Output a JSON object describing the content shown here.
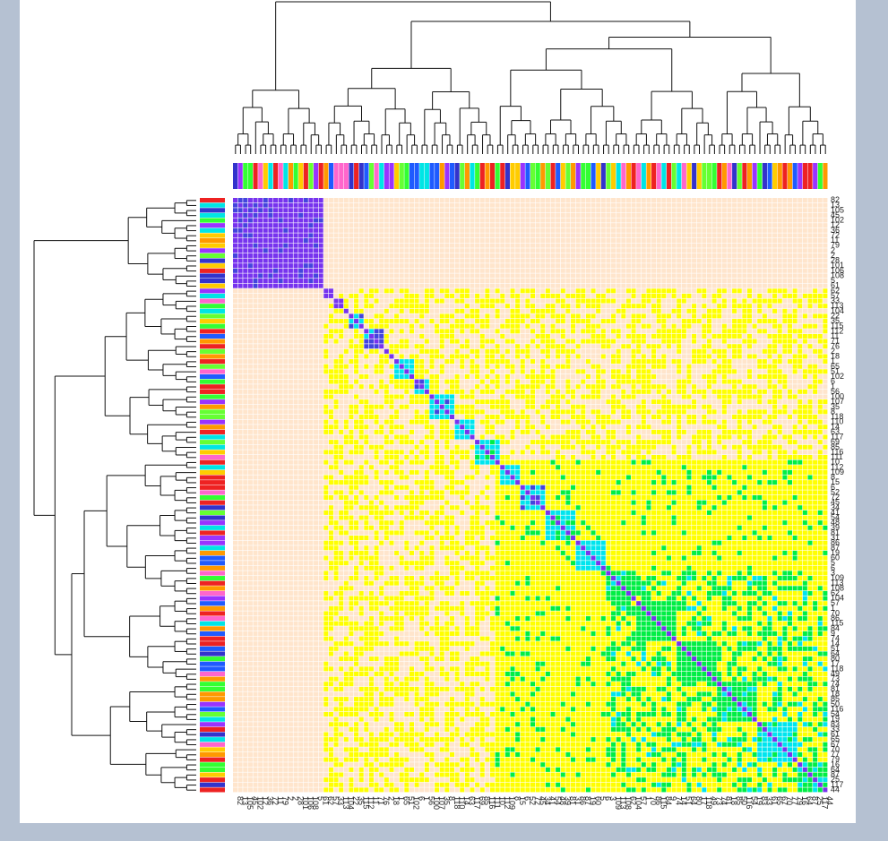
{
  "chart_data": {
    "type": "heatmap",
    "title": "",
    "xlabel": "",
    "ylabel": "",
    "description_of_structure": "Hierarchically clustered correlation heatmap with row and column dendrograms and colored group side-bars",
    "n": 118,
    "row_labels_visible": [
      "82",
      "13",
      "105",
      "45",
      "102",
      "12",
      "36",
      "72",
      "11",
      "79",
      "2",
      "2",
      "28",
      "101",
      "106",
      "108",
      "5",
      "61",
      "62",
      "57",
      "33",
      "113",
      "104",
      "22",
      "35",
      "115",
      "112",
      "11",
      "71",
      "76",
      "2",
      "18",
      "1",
      "65",
      "51",
      "102",
      "6",
      "1",
      "56",
      "100",
      "107",
      "35",
      "8",
      "118",
      "110",
      "14",
      "63",
      "117",
      "69",
      "85",
      "116",
      "111",
      "10",
      "112",
      "109",
      "8",
      "15",
      "6",
      "52",
      "72",
      "45",
      "34",
      "41",
      "54",
      "48",
      "39",
      "81",
      "31",
      "86",
      "87",
      "19",
      "60",
      "5",
      "6",
      "3",
      "109",
      "113",
      "108",
      "62",
      "104",
      "57",
      "1",
      "70",
      "86",
      "115",
      "84",
      "9",
      "74",
      "14",
      "51",
      "64",
      "80",
      "17",
      "118",
      "49",
      "73",
      "74",
      "81",
      "18",
      "85",
      "50",
      "116",
      "54",
      "19",
      "83",
      "33",
      "61",
      "65",
      "67",
      "70",
      "77",
      "79",
      "16",
      "64",
      "87",
      "25",
      "117",
      "44"
    ],
    "column_labels_visible": [
      "82",
      "13",
      "105",
      "45",
      "102",
      "12",
      "36",
      "72",
      "11",
      "79",
      "2",
      "2",
      "28",
      "101",
      "106",
      "108",
      "5",
      "61",
      "62",
      "57",
      "33",
      "113",
      "104",
      "22",
      "35",
      "115",
      "112",
      "11",
      "71",
      "76",
      "2",
      "18",
      "1",
      "65",
      "51",
      "102",
      "6",
      "1",
      "56",
      "100",
      "107",
      "35",
      "8",
      "118",
      "110",
      "14",
      "63",
      "117",
      "69",
      "85",
      "116",
      "111",
      "10",
      "112",
      "109",
      "8",
      "15",
      "6",
      "52",
      "72",
      "45",
      "34",
      "41",
      "54",
      "48",
      "39",
      "81",
      "31",
      "86",
      "87",
      "19",
      "60",
      "5",
      "6",
      "3",
      "109",
      "113",
      "108",
      "62",
      "104",
      "57",
      "1",
      "70",
      "86",
      "115",
      "84",
      "9",
      "74",
      "14",
      "51",
      "64",
      "80",
      "17",
      "118",
      "49",
      "73",
      "74",
      "81",
      "18",
      "85",
      "50",
      "116",
      "54",
      "19",
      "83",
      "33",
      "61",
      "65",
      "67",
      "70",
      "77",
      "79",
      "16",
      "64",
      "87",
      "25",
      "117",
      "44"
    ],
    "color_scale": {
      "low": "#ffe5cc",
      "mid_low": "#ffff00",
      "mid": "#00ee44",
      "mid_high": "#00e5ee",
      "high": "#4444dd",
      "max": "#7733ee",
      "grid_line": "#ffffff"
    },
    "group_colors": [
      "#1f5bff",
      "#ff9900",
      "#33ff33",
      "#ff66cc",
      "#00e5e5",
      "#3333cc",
      "#ffcc00",
      "#ee2222",
      "#9933ff",
      "#66ff33"
    ],
    "blocks": [
      {
        "start": 0,
        "end": 18,
        "value": 0.95
      },
      {
        "start": 18,
        "end": 20,
        "value": 0.9
      },
      {
        "start": 20,
        "end": 22,
        "value": 0.9
      },
      {
        "start": 23,
        "end": 26,
        "value": 0.8
      },
      {
        "start": 26,
        "end": 30,
        "value": 0.8
      },
      {
        "start": 32,
        "end": 36,
        "value": 0.75
      },
      {
        "start": 36,
        "end": 39,
        "value": 0.75
      },
      {
        "start": 39,
        "end": 44,
        "value": 0.75
      },
      {
        "start": 44,
        "end": 48,
        "value": 0.7
      },
      {
        "start": 48,
        "end": 53,
        "value": 0.65
      },
      {
        "start": 53,
        "end": 57,
        "value": 0.7
      },
      {
        "start": 57,
        "end": 62,
        "value": 0.75
      },
      {
        "start": 62,
        "end": 68,
        "value": 0.65
      },
      {
        "start": 68,
        "end": 74,
        "value": 0.7
      },
      {
        "start": 74,
        "end": 80,
        "value": 0.6
      },
      {
        "start": 80,
        "end": 88,
        "value": 0.55
      },
      {
        "start": 88,
        "end": 96,
        "value": 0.55
      },
      {
        "start": 96,
        "end": 104,
        "value": 0.6
      },
      {
        "start": 104,
        "end": 112,
        "value": 0.65
      },
      {
        "start": 112,
        "end": 118,
        "value": 0.6
      }
    ],
    "grid": true,
    "legend": "none"
  }
}
